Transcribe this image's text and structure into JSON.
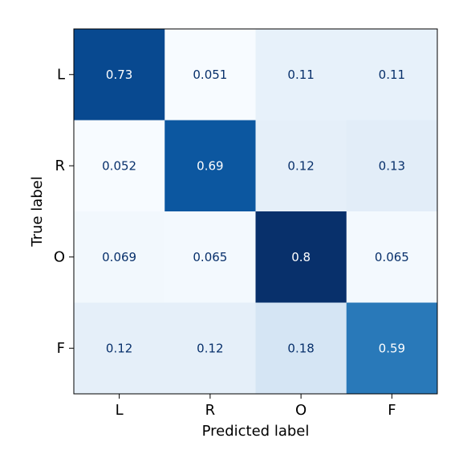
{
  "chart_data": {
    "type": "heatmap",
    "title": "",
    "xlabel": "Predicted label",
    "ylabel": "True label",
    "x_categories": [
      "L",
      "R",
      "O",
      "F"
    ],
    "y_categories": [
      "L",
      "R",
      "O",
      "F"
    ],
    "values": [
      [
        0.73,
        0.051,
        0.11,
        0.11
      ],
      [
        0.052,
        0.69,
        0.12,
        0.13
      ],
      [
        0.069,
        0.065,
        0.8,
        0.065
      ],
      [
        0.12,
        0.12,
        0.18,
        0.59
      ]
    ],
    "value_labels": [
      [
        "0.73",
        "0.051",
        "0.11",
        "0.11"
      ],
      [
        "0.052",
        "0.69",
        "0.12",
        "0.13"
      ],
      [
        "0.069",
        "0.065",
        "0.8",
        "0.065"
      ],
      [
        "0.12",
        "0.12",
        "0.18",
        "0.59"
      ]
    ],
    "colormap": "Blues",
    "color_min": 0.051,
    "color_max": 0.8,
    "text_colors": {
      "dark": "#08306b",
      "light": "#ffffff"
    },
    "legend": "none",
    "grid": false
  }
}
